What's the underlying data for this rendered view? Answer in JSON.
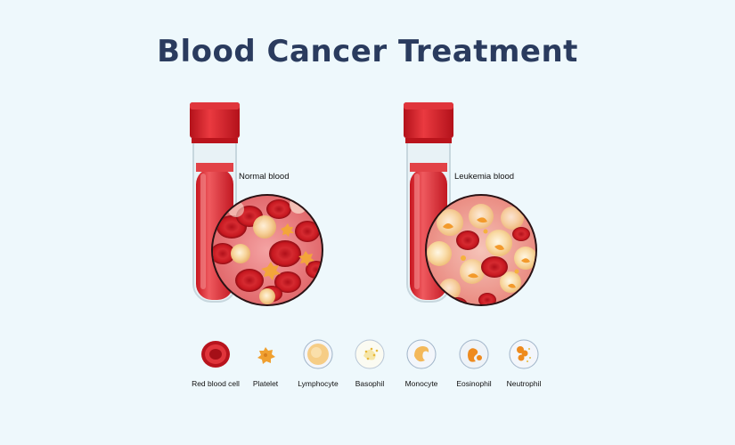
{
  "title": "Blood Cancer Treatment",
  "panels": {
    "normal": {
      "label": "Normal blood"
    },
    "leukemia": {
      "label": "Leukemia blood"
    }
  },
  "legend": [
    {
      "label": "Red blood cell",
      "icon": "red-blood-cell-icon"
    },
    {
      "label": "Platelet",
      "icon": "platelet-icon"
    },
    {
      "label": "Lymphocyte",
      "icon": "lymphocyte-icon"
    },
    {
      "label": "Basophil",
      "icon": "basophil-icon"
    },
    {
      "label": "Monocyte",
      "icon": "monocyte-icon"
    },
    {
      "label": "Eosinophil",
      "icon": "eosinophil-icon"
    },
    {
      "label": "Neutrophil",
      "icon": "neutrophil-icon"
    }
  ],
  "colors": {
    "background": "#eef8fc",
    "title": "#2a3b5e",
    "blood": "#d9232e",
    "cap": "#d31f29"
  }
}
